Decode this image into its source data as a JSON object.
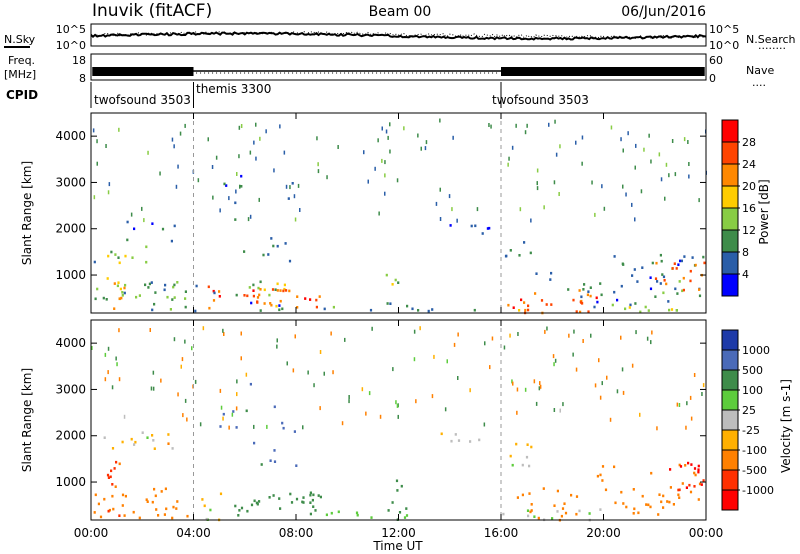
{
  "header": {
    "station": "Inuvik (fitACF)",
    "beam": "Beam 00",
    "date": "06/Jun/2016"
  },
  "strip_labels": {
    "nsky": "N.Sky",
    "nsearch": "N.Search",
    "nsearch_dots": "........",
    "freq_line1": "Freq.",
    "freq_line2": "[MHz]",
    "nave": "Nave",
    "nave_dots": "....",
    "cpid": "CPID"
  },
  "strip_ticks": {
    "noise_top_left": "10^5",
    "noise_bottom_left": "10^0",
    "noise_top_right": "10^5",
    "noise_bottom_right": "10^0",
    "freq_top_left": "18",
    "freq_bottom_left": "8",
    "nave_top_right": "60",
    "nave_bottom_right": "0"
  },
  "cpid_segments": [
    {
      "label": "twofsound 3503",
      "start_h": 0,
      "end_h": 4
    },
    {
      "label": "themis 3300",
      "start_h": 4,
      "end_h": 16
    },
    {
      "label": "twofsound 3503",
      "start_h": 16,
      "end_h": 24
    }
  ],
  "power_colorbar": {
    "title": "Power [dB]",
    "ticks": [
      "28",
      "24",
      "20",
      "16",
      "12",
      "8",
      "4"
    ],
    "colors": [
      "#ff0000",
      "#ff4400",
      "#ff8800",
      "#ffcc00",
      "#88cc44",
      "#3e8c4a",
      "#2a5ea8",
      "#0000ff"
    ]
  },
  "velocity_colorbar": {
    "title": "Velocity [m s-1]",
    "ticks": [
      "1000",
      "500",
      "100",
      "25",
      "-25",
      "-100",
      "-500",
      "-1000"
    ],
    "colors": [
      "#1e3aa8",
      "#4a6ab8",
      "#3e8c4a",
      "#5dcc3c",
      "#bdbdbd",
      "#ffb000",
      "#ff8000",
      "#ff3000",
      "#ff0000"
    ]
  },
  "chart_data": [
    {
      "type": "heatmap",
      "panel": "power",
      "ylabel": "Slant Range [km]",
      "xlabel": "",
      "x_ticks": [
        "00:00",
        "04:00",
        "08:00",
        "12:00",
        "16:00",
        "20:00",
        "00:00"
      ],
      "y_ticks": [
        "1000",
        "2000",
        "3000",
        "4000"
      ],
      "xlim_hours": [
        0,
        24
      ],
      "ylim_km": [
        180,
        4500
      ],
      "grid": false,
      "dashed_markers_h": [
        4,
        16
      ],
      "blobs": [
        {
          "h0": 0.1,
          "h1": 3.8,
          "r0": 250,
          "r1": 900,
          "v": 10,
          "d": 0.55
        },
        {
          "h0": 0.6,
          "h1": 1.4,
          "r0": 300,
          "r1": 1600,
          "v": 18,
          "d": 0.5
        },
        {
          "h0": 0.8,
          "h1": 1.2,
          "r0": 280,
          "r1": 550,
          "v": 26,
          "d": 0.7
        },
        {
          "h0": 0.1,
          "h1": 2.2,
          "r0": 1300,
          "r1": 1650,
          "v": 11,
          "d": 0.35
        },
        {
          "h0": 1.2,
          "h1": 3.5,
          "r0": 1750,
          "r1": 2200,
          "v": 6,
          "d": 0.3
        },
        {
          "h0": 4.2,
          "h1": 5.0,
          "r0": 300,
          "r1": 800,
          "v": 26,
          "d": 0.7
        },
        {
          "h0": 4.0,
          "h1": 7.5,
          "r0": 200,
          "r1": 900,
          "v": 8,
          "d": 0.25
        },
        {
          "h0": 5.8,
          "h1": 9.0,
          "r0": 300,
          "r1": 750,
          "v": 24,
          "d": 0.75
        },
        {
          "h0": 6.2,
          "h1": 7.8,
          "r0": 500,
          "r1": 900,
          "v": 20,
          "d": 0.55
        },
        {
          "h0": 5.0,
          "h1": 8.0,
          "r0": 1200,
          "r1": 3200,
          "v": 8,
          "d": 0.12
        },
        {
          "h0": 9.0,
          "h1": 11.0,
          "r0": 250,
          "r1": 450,
          "v": 10,
          "d": 0.35
        },
        {
          "h0": 11.4,
          "h1": 12.3,
          "r0": 300,
          "r1": 1100,
          "v": 12,
          "d": 0.45
        },
        {
          "h0": 12.5,
          "h1": 15.5,
          "r0": 200,
          "r1": 400,
          "v": 6,
          "d": 0.35
        },
        {
          "h0": 13.5,
          "h1": 15.5,
          "r0": 1900,
          "r1": 2150,
          "v": 5,
          "d": 0.5
        },
        {
          "h0": 16.0,
          "h1": 17.5,
          "r0": 1350,
          "r1": 1900,
          "v": 8,
          "d": 0.35
        },
        {
          "h0": 16.2,
          "h1": 19.8,
          "r0": 200,
          "r1": 700,
          "v": 24,
          "d": 0.65
        },
        {
          "h0": 17.0,
          "h1": 19.5,
          "r0": 550,
          "r1": 1100,
          "v": 8,
          "d": 0.3
        },
        {
          "h0": 19.5,
          "h1": 23.9,
          "r0": 200,
          "r1": 1500,
          "v": 8,
          "d": 0.35
        },
        {
          "h0": 22.0,
          "h1": 23.9,
          "r0": 700,
          "r1": 1300,
          "v": 24,
          "d": 0.6
        },
        {
          "h0": 20.0,
          "h1": 23.9,
          "r0": 200,
          "r1": 350,
          "v": 14,
          "d": 0.6
        }
      ]
    },
    {
      "type": "heatmap",
      "panel": "velocity",
      "ylabel": "Slant Range [km]",
      "xlabel": "Time UT",
      "x_ticks": [
        "00:00",
        "04:00",
        "08:00",
        "12:00",
        "16:00",
        "20:00",
        "00:00"
      ],
      "y_ticks": [
        "1000",
        "2000",
        "3000",
        "4000"
      ],
      "xlim_hours": [
        0,
        24
      ],
      "ylim_km": [
        180,
        4500
      ],
      "grid": false,
      "dashed_markers_h": [
        4,
        16
      ],
      "blobs": [
        {
          "h0": 0.1,
          "h1": 3.8,
          "r0": 250,
          "r1": 900,
          "v": -300,
          "d": 0.55
        },
        {
          "h0": 0.6,
          "h1": 1.4,
          "r0": 300,
          "r1": 1600,
          "v": -600,
          "d": 0.5
        },
        {
          "h0": 0.1,
          "h1": 2.5,
          "r0": 1750,
          "r1": 2150,
          "v": 0,
          "d": 0.4
        },
        {
          "h0": 1.5,
          "h1": 3.5,
          "r0": 1700,
          "r1": 2100,
          "v": -80,
          "d": 0.3
        },
        {
          "h0": 4.0,
          "h1": 5.2,
          "r0": 200,
          "r1": 800,
          "v": 0,
          "d": 0.45
        },
        {
          "h0": 5.5,
          "h1": 9.0,
          "r0": 280,
          "r1": 800,
          "v": 300,
          "d": 0.75
        },
        {
          "h0": 5.0,
          "h1": 8.0,
          "r0": 1200,
          "r1": 3200,
          "v": 700,
          "d": 0.12
        },
        {
          "h0": 11.4,
          "h1": 12.3,
          "r0": 300,
          "r1": 1100,
          "v": 300,
          "d": 0.45
        },
        {
          "h0": 9.0,
          "h1": 15.5,
          "r0": 200,
          "r1": 400,
          "v": 60,
          "d": 0.3
        },
        {
          "h0": 13.5,
          "h1": 15.5,
          "r0": 1900,
          "r1": 2150,
          "v": 0,
          "d": 0.5
        },
        {
          "h0": 16.0,
          "h1": 17.5,
          "r0": 1350,
          "r1": 1900,
          "v": 0,
          "d": 0.45
        },
        {
          "h0": 16.5,
          "h1": 19.0,
          "r0": 200,
          "r1": 900,
          "v": -200,
          "d": 0.45
        },
        {
          "h0": 16.0,
          "h1": 20.0,
          "r0": 180,
          "r1": 450,
          "v": 0,
          "d": 0.45
        },
        {
          "h0": 19.5,
          "h1": 23.9,
          "r0": 300,
          "r1": 1400,
          "v": -300,
          "d": 0.35
        },
        {
          "h0": 22.0,
          "h1": 23.9,
          "r0": 800,
          "r1": 1450,
          "v": -1000,
          "d": 0.55
        }
      ]
    }
  ]
}
